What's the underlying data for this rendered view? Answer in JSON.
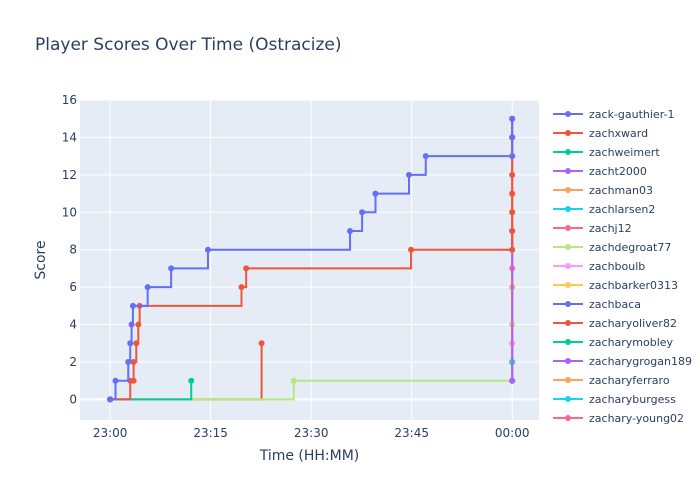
{
  "chart_data": {
    "type": "line",
    "line_shape": "step",
    "title": "Player Scores Over Time (Ostracize)",
    "xlabel": "Time (HH:MM)",
    "ylabel": "Score",
    "x_ticks": [
      "23:00",
      "23:15",
      "23:30",
      "23:45",
      "00:00"
    ],
    "x_tick_values": [
      0,
      15,
      30,
      45,
      60
    ],
    "xlim": [
      -4.5,
      64
    ],
    "y_ticks": [
      0,
      2,
      4,
      6,
      8,
      10,
      12,
      14,
      16
    ],
    "ylim": [
      -1.1,
      16
    ],
    "grid": true,
    "legend_position": "right",
    "series": [
      {
        "name": "zack-gauthier-1",
        "color": "#636efa",
        "points": [
          [
            0,
            0
          ],
          [
            0.8,
            1
          ],
          [
            2.7,
            2
          ],
          [
            3.0,
            3
          ],
          [
            3.2,
            4
          ],
          [
            3.4,
            5
          ],
          [
            5.6,
            6
          ],
          [
            9.1,
            7
          ],
          [
            14.6,
            8
          ],
          [
            35.8,
            9
          ],
          [
            37.6,
            10
          ],
          [
            39.6,
            11
          ],
          [
            44.6,
            12
          ],
          [
            47.1,
            13
          ],
          [
            60,
            13
          ],
          [
            60,
            14
          ],
          [
            60,
            15
          ]
        ]
      },
      {
        "name": "zachxward",
        "color": "#ef553b",
        "points": [
          [
            0,
            0
          ],
          [
            3.0,
            1
          ],
          [
            3.5,
            1
          ],
          [
            3.5,
            2
          ],
          [
            3.9,
            3
          ],
          [
            4.2,
            4
          ],
          [
            4.4,
            5
          ],
          [
            19.6,
            6
          ],
          [
            20.3,
            7
          ],
          [
            44.9,
            8
          ],
          [
            60,
            8
          ],
          [
            60,
            9
          ],
          [
            60,
            10
          ],
          [
            60,
            11
          ],
          [
            60,
            12
          ],
          [
            60,
            13
          ],
          [
            60,
            14
          ],
          [
            60,
            15
          ]
        ]
      },
      {
        "name": "zachweimert",
        "color": "#00cc96",
        "points": [
          [
            0,
            0
          ],
          [
            12.1,
            1
          ]
        ]
      },
      {
        "name": "zacht2000",
        "color": "#ab63fa",
        "points": [
          [
            60,
            1
          ],
          [
            60,
            9
          ]
        ]
      },
      {
        "name": "zachman03",
        "color": "#ffa15a",
        "points": [
          [
            60,
            1
          ],
          [
            60,
            10
          ]
        ]
      },
      {
        "name": "zachlarsen2",
        "color": "#19d3f3",
        "points": [
          [
            60,
            1
          ],
          [
            60,
            2
          ]
        ]
      },
      {
        "name": "zachj12",
        "color": "#ff6692",
        "points": [
          [
            60,
            1
          ],
          [
            60,
            7
          ],
          [
            60,
            14
          ]
        ]
      },
      {
        "name": "zachdegroat77",
        "color": "#b6e880",
        "points": [
          [
            0,
            0
          ],
          [
            27.4,
            1
          ],
          [
            60,
            1
          ],
          [
            60,
            11
          ]
        ]
      },
      {
        "name": "zachboulb",
        "color": "#ff97ff",
        "points": [
          [
            60,
            1
          ],
          [
            60,
            3
          ]
        ]
      },
      {
        "name": "zachbarker0313",
        "color": "#fecb52",
        "points": [
          [
            60,
            1
          ],
          [
            60,
            4
          ]
        ]
      },
      {
        "name": "zachbaca",
        "color": "#636efa",
        "points": [
          [
            60,
            1
          ],
          [
            60,
            9
          ]
        ]
      },
      {
        "name": "zacharyoliver82",
        "color": "#ef553b",
        "points": [
          [
            0,
            0
          ],
          [
            22.6,
            3
          ]
        ]
      },
      {
        "name": "zacharymobley",
        "color": "#00cc96",
        "points": [
          [
            60,
            1
          ],
          [
            60,
            2
          ]
        ]
      },
      {
        "name": "zacharygrogan189",
        "color": "#ab63fa",
        "points": [
          [
            60,
            1
          ],
          [
            60,
            4
          ]
        ]
      },
      {
        "name": "zacharyferraro",
        "color": "#ffa15a",
        "points": [
          [
            60,
            1
          ],
          [
            60,
            6
          ]
        ]
      },
      {
        "name": "zacharyburgess",
        "color": "#19d3f3",
        "points": [
          [
            60,
            1
          ],
          [
            60,
            2
          ]
        ]
      },
      {
        "name": "zachary-young02",
        "color": "#ff6692",
        "points": [
          [
            60,
            1
          ],
          [
            60,
            3
          ]
        ]
      }
    ]
  },
  "colors": {
    "plot_background": "#e5ecf6",
    "grid": "#ffffff",
    "text": "#2a3f5f"
  }
}
